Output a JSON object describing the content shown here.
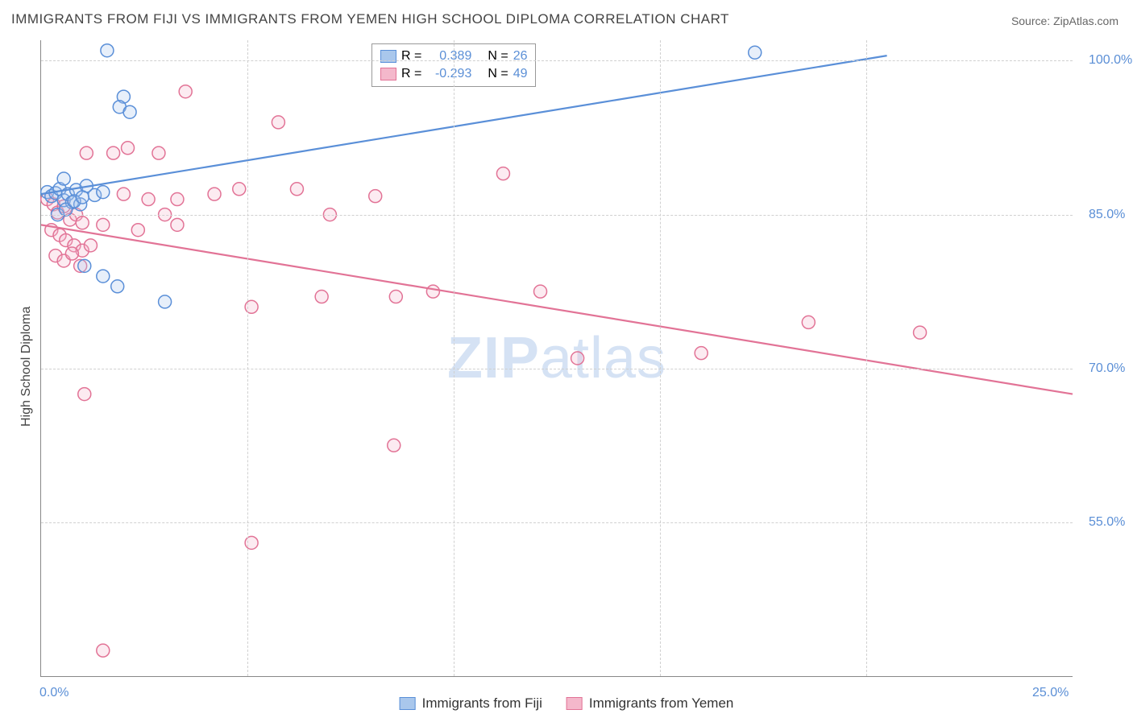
{
  "title": "IMMIGRANTS FROM FIJI VS IMMIGRANTS FROM YEMEN HIGH SCHOOL DIPLOMA CORRELATION CHART",
  "source": "Source: ZipAtlas.com",
  "watermark": {
    "bold": "ZIP",
    "rest": "atlas"
  },
  "y_axis": {
    "title": "High School Diploma"
  },
  "chart": {
    "type": "scatter",
    "xlim": [
      0,
      25
    ],
    "ylim": [
      40,
      102
    ],
    "x_ticks": [
      {
        "value": 0,
        "label": "0.0%"
      },
      {
        "value": 25,
        "label": "25.0%"
      }
    ],
    "y_ticks": [
      {
        "value": 55,
        "label": "55.0%"
      },
      {
        "value": 70,
        "label": "70.0%"
      },
      {
        "value": 85,
        "label": "85.0%"
      },
      {
        "value": 100,
        "label": "100.0%"
      }
    ],
    "x_grid": [
      5,
      10,
      15,
      20
    ],
    "background_color": "#ffffff",
    "grid_color": "#d0d0d0",
    "marker_radius": 8,
    "marker_stroke_width": 1.5,
    "marker_fill_opacity": 0.28,
    "line_width": 2.2,
    "series": [
      {
        "name": "Immigrants from Fiji",
        "color_stroke": "#5a8fd8",
        "color_fill": "#a9c7ec",
        "R": "0.389",
        "N": "26",
        "regression": {
          "x1": 0,
          "y1": 87.0,
          "x2": 20.5,
          "y2": 100.5
        },
        "points": [
          [
            0.15,
            87.2
          ],
          [
            0.25,
            86.8
          ],
          [
            0.35,
            87.1
          ],
          [
            0.45,
            87.5
          ],
          [
            0.55,
            86.4
          ],
          [
            0.65,
            87.0
          ],
          [
            0.75,
            86.2
          ],
          [
            0.55,
            88.5
          ],
          [
            0.85,
            87.4
          ],
          [
            0.95,
            86.0
          ],
          [
            1.1,
            87.8
          ],
          [
            1.3,
            86.9
          ],
          [
            1.5,
            87.2
          ],
          [
            1.05,
            80.0
          ],
          [
            1.5,
            79.0
          ],
          [
            1.85,
            78.0
          ],
          [
            3.0,
            76.5
          ],
          [
            1.6,
            101.0
          ],
          [
            2.0,
            96.5
          ],
          [
            1.9,
            95.5
          ],
          [
            2.15,
            95.0
          ],
          [
            17.3,
            100.8
          ],
          [
            0.4,
            85.0
          ],
          [
            0.6,
            85.5
          ],
          [
            0.8,
            86.3
          ],
          [
            1.0,
            86.7
          ]
        ]
      },
      {
        "name": "Immigrants from Yemen",
        "color_stroke": "#e27396",
        "color_fill": "#f4b8cb",
        "R": "-0.293",
        "N": "49",
        "regression": {
          "x1": 0,
          "y1": 84.0,
          "x2": 25,
          "y2": 67.5
        },
        "points": [
          [
            0.15,
            86.5
          ],
          [
            0.3,
            86.0
          ],
          [
            0.4,
            85.2
          ],
          [
            0.55,
            85.8
          ],
          [
            0.7,
            84.5
          ],
          [
            0.85,
            85.0
          ],
          [
            1.0,
            84.2
          ],
          [
            0.25,
            83.5
          ],
          [
            0.45,
            83.0
          ],
          [
            0.6,
            82.5
          ],
          [
            0.8,
            82.0
          ],
          [
            1.0,
            81.5
          ],
          [
            1.2,
            82.0
          ],
          [
            0.35,
            81.0
          ],
          [
            0.55,
            80.5
          ],
          [
            0.75,
            81.2
          ],
          [
            0.95,
            80.0
          ],
          [
            1.1,
            91.0
          ],
          [
            1.5,
            84.0
          ],
          [
            1.75,
            91.0
          ],
          [
            2.1,
            91.5
          ],
          [
            2.0,
            87.0
          ],
          [
            2.35,
            83.5
          ],
          [
            2.6,
            86.5
          ],
          [
            2.85,
            91.0
          ],
          [
            3.0,
            85.0
          ],
          [
            3.3,
            84.0
          ],
          [
            3.5,
            97.0
          ],
          [
            3.3,
            86.5
          ],
          [
            4.2,
            87.0
          ],
          [
            4.8,
            87.5
          ],
          [
            5.75,
            94.0
          ],
          [
            6.2,
            87.5
          ],
          [
            7.0,
            85.0
          ],
          [
            6.8,
            77.0
          ],
          [
            8.1,
            86.8
          ],
          [
            8.6,
            77.0
          ],
          [
            9.5,
            77.5
          ],
          [
            11.2,
            89.0
          ],
          [
            12.1,
            77.5
          ],
          [
            13.0,
            71.0
          ],
          [
            16.0,
            71.5
          ],
          [
            18.6,
            74.5
          ],
          [
            21.3,
            73.5
          ],
          [
            8.55,
            62.5
          ],
          [
            5.1,
            53.0
          ],
          [
            5.1,
            76.0
          ],
          [
            1.05,
            67.5
          ],
          [
            1.5,
            42.5
          ]
        ]
      }
    ]
  },
  "stats_legend": {
    "r_label": "R =",
    "n_label": "N ="
  }
}
